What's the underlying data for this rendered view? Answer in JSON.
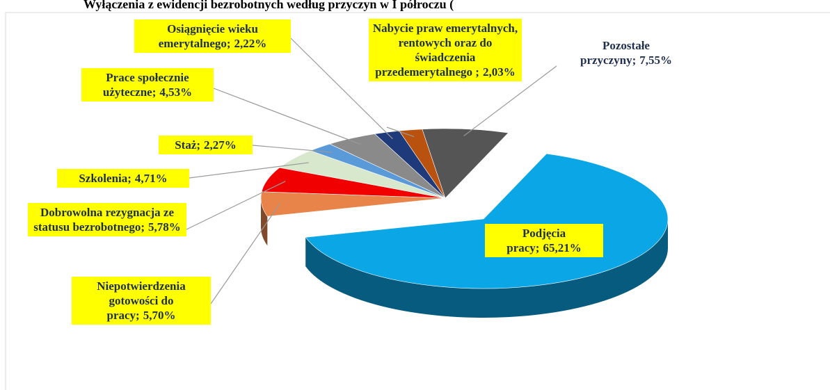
{
  "chart_data": {
    "type": "pie3d",
    "title": "Wyłączenia z ewidencji bezrobotnych według przyczyn w I półroczu (",
    "categories": [
      "Podjęcia pracy;",
      "Niepotwierdzenia gotowości do pracy;",
      "Dobrowolna rezygnacja ze statusu bezrobotnego;",
      "Szkolenia;",
      "Staż;",
      "Prace społecznie użyteczne;",
      "Osiągnięcie wieku emerytalnego;",
      "Nabycie praw emerytalnych, rentowych oraz do świadczenia przedemerytalnego ;",
      "Pozostałe przyczyny;"
    ],
    "values": [
      65.21,
      5.7,
      5.78,
      4.71,
      2.27,
      4.53,
      2.22,
      2.03,
      7.55
    ],
    "value_labels": [
      "65,21%",
      "5,70%",
      "5,78%",
      "4,71%",
      "2,27%",
      "4,53%",
      "2,22%",
      "2,03%",
      "7,55%"
    ],
    "colors": [
      "#0aa6e6",
      "#e8844a",
      "#f00000",
      "#d8e8cc",
      "#5a9ad8",
      "#8a8a8a",
      "#1f3a7a",
      "#b8520e",
      "#555555"
    ]
  }
}
